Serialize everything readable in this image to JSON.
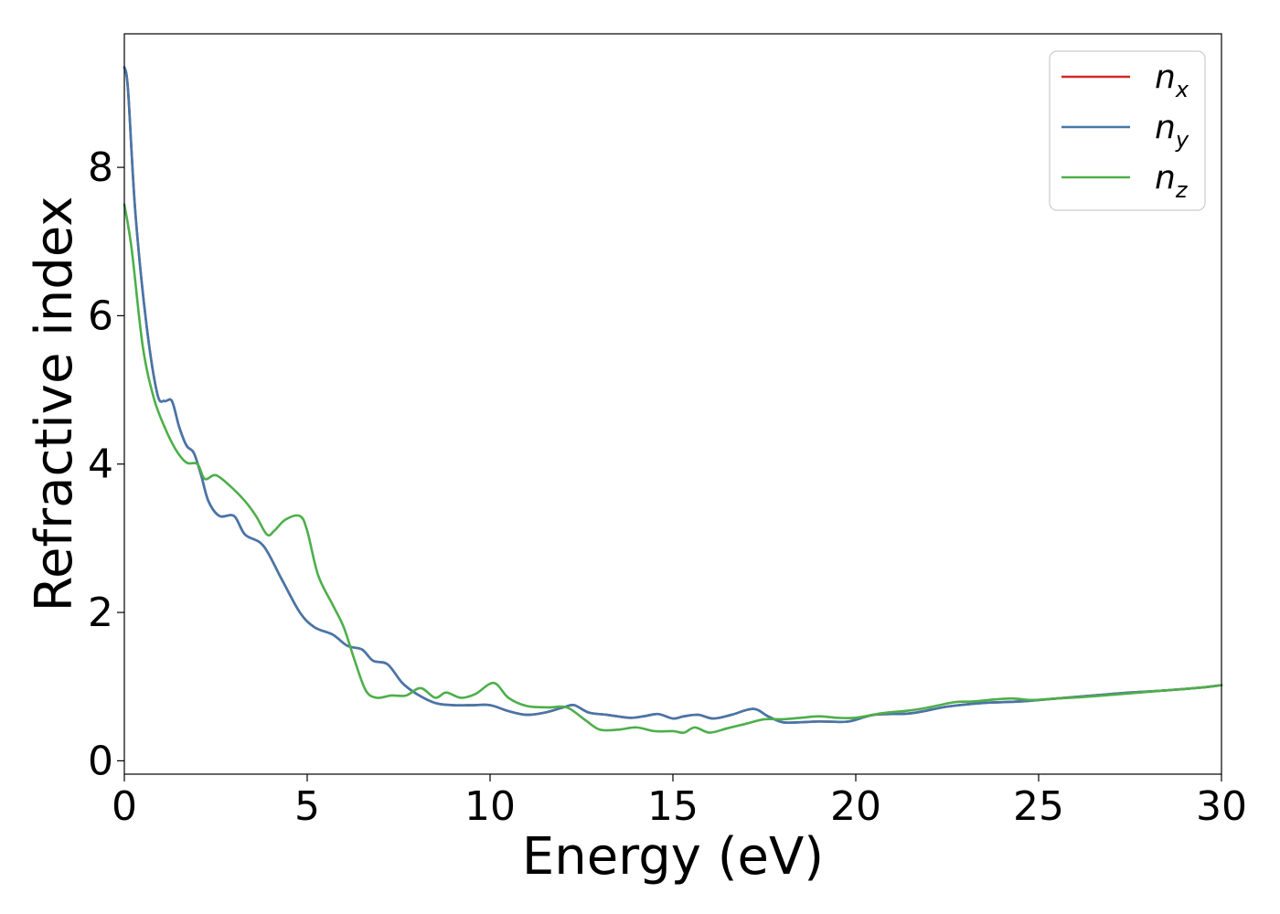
{
  "chart_data": {
    "type": "line",
    "title": "",
    "xlabel": "Energy (eV)",
    "ylabel": "Refractive index",
    "xlim": [
      0,
      30
    ],
    "ylim": [
      -0.18,
      9.8
    ],
    "xticks": [
      0,
      5,
      10,
      15,
      20,
      25,
      30
    ],
    "yticks": [
      0,
      2,
      4,
      6,
      8
    ],
    "grid": false,
    "legend": {
      "placement": "top-right"
    },
    "series": [
      {
        "name": "n_x",
        "label_main": "n",
        "label_sub": "x",
        "color": "#d62728",
        "x": [
          0,
          0.1,
          0.3,
          0.6,
          0.9,
          1.1,
          1.3,
          1.5,
          1.7,
          1.9,
          2.1,
          2.3,
          2.6,
          3.0,
          3.3,
          3.8,
          4.3,
          4.8,
          5.2,
          5.7,
          6.1,
          6.5,
          6.8,
          7.2,
          7.6,
          8.0,
          8.5,
          9.0,
          9.5,
          10.0,
          10.5,
          11.0,
          11.5,
          12.0,
          12.3,
          12.7,
          13.2,
          13.8,
          14.2,
          14.6,
          15.0,
          15.3,
          15.7,
          16.1,
          16.6,
          17.2,
          17.6,
          18.0,
          18.5,
          19.0,
          19.8,
          20.5,
          21.5,
          22.5,
          23.5,
          24.5,
          25.5,
          26.5,
          27.5,
          28.5,
          29.5,
          30.0
        ],
        "y": [
          9.35,
          9.05,
          7.4,
          5.9,
          4.95,
          4.85,
          4.85,
          4.5,
          4.25,
          4.15,
          3.85,
          3.5,
          3.3,
          3.3,
          3.05,
          2.9,
          2.45,
          2.0,
          1.8,
          1.7,
          1.55,
          1.5,
          1.35,
          1.3,
          1.05,
          0.9,
          0.78,
          0.75,
          0.75,
          0.75,
          0.67,
          0.62,
          0.65,
          0.72,
          0.75,
          0.65,
          0.62,
          0.58,
          0.6,
          0.63,
          0.57,
          0.6,
          0.62,
          0.57,
          0.62,
          0.7,
          0.6,
          0.52,
          0.52,
          0.53,
          0.53,
          0.62,
          0.64,
          0.73,
          0.78,
          0.8,
          0.84,
          0.88,
          0.92,
          0.95,
          0.99,
          1.02
        ]
      },
      {
        "name": "n_y",
        "label_main": "n",
        "label_sub": "y",
        "color": "#4477aa",
        "x": [
          0,
          0.1,
          0.3,
          0.6,
          0.9,
          1.1,
          1.3,
          1.5,
          1.7,
          1.9,
          2.1,
          2.3,
          2.6,
          3.0,
          3.3,
          3.8,
          4.3,
          4.8,
          5.2,
          5.7,
          6.1,
          6.5,
          6.8,
          7.2,
          7.6,
          8.0,
          8.5,
          9.0,
          9.5,
          10.0,
          10.5,
          11.0,
          11.5,
          12.0,
          12.3,
          12.7,
          13.2,
          13.8,
          14.2,
          14.6,
          15.0,
          15.3,
          15.7,
          16.1,
          16.6,
          17.2,
          17.6,
          18.0,
          18.5,
          19.0,
          19.8,
          20.5,
          21.5,
          22.5,
          23.5,
          24.5,
          25.5,
          26.5,
          27.5,
          28.5,
          29.5,
          30.0
        ],
        "y": [
          9.35,
          9.05,
          7.4,
          5.9,
          4.95,
          4.85,
          4.85,
          4.5,
          4.25,
          4.15,
          3.85,
          3.5,
          3.3,
          3.3,
          3.05,
          2.9,
          2.45,
          2.0,
          1.8,
          1.7,
          1.55,
          1.5,
          1.35,
          1.3,
          1.05,
          0.9,
          0.78,
          0.75,
          0.75,
          0.75,
          0.67,
          0.62,
          0.65,
          0.72,
          0.75,
          0.65,
          0.62,
          0.58,
          0.6,
          0.63,
          0.57,
          0.6,
          0.62,
          0.57,
          0.62,
          0.7,
          0.6,
          0.52,
          0.52,
          0.53,
          0.53,
          0.62,
          0.64,
          0.73,
          0.78,
          0.8,
          0.84,
          0.88,
          0.92,
          0.95,
          0.99,
          1.02
        ]
      },
      {
        "name": "n_z",
        "label_main": "n",
        "label_sub": "z",
        "color": "#4daf4a",
        "x": [
          0,
          0.2,
          0.5,
          0.8,
          1.1,
          1.4,
          1.7,
          2.0,
          2.2,
          2.5,
          2.9,
          3.3,
          3.6,
          3.9,
          4.1,
          4.4,
          4.8,
          5.0,
          5.3,
          5.7,
          6.0,
          6.3,
          6.6,
          6.9,
          7.3,
          7.7,
          8.1,
          8.5,
          8.8,
          9.2,
          9.6,
          10.1,
          10.5,
          11.0,
          11.6,
          12.1,
          12.6,
          13.0,
          13.5,
          14.0,
          14.5,
          15.0,
          15.3,
          15.6,
          16.0,
          16.5,
          17.0,
          17.5,
          18.0,
          18.5,
          19.0,
          19.5,
          20.0,
          20.7,
          21.5,
          22.0,
          22.7,
          23.2,
          24.2,
          24.8,
          25.5,
          26.5,
          27.5,
          28.5,
          29.5,
          30.0
        ],
        "y": [
          7.5,
          6.9,
          5.6,
          4.9,
          4.5,
          4.2,
          4.02,
          4.0,
          3.8,
          3.85,
          3.7,
          3.5,
          3.3,
          3.05,
          3.1,
          3.25,
          3.3,
          3.1,
          2.5,
          2.1,
          1.8,
          1.35,
          0.95,
          0.85,
          0.88,
          0.88,
          0.98,
          0.85,
          0.92,
          0.85,
          0.9,
          1.05,
          0.85,
          0.74,
          0.72,
          0.72,
          0.55,
          0.42,
          0.42,
          0.45,
          0.4,
          0.4,
          0.38,
          0.45,
          0.38,
          0.44,
          0.5,
          0.56,
          0.56,
          0.58,
          0.6,
          0.58,
          0.58,
          0.64,
          0.68,
          0.72,
          0.79,
          0.8,
          0.84,
          0.82,
          0.84,
          0.87,
          0.91,
          0.95,
          0.99,
          1.02
        ]
      }
    ]
  }
}
